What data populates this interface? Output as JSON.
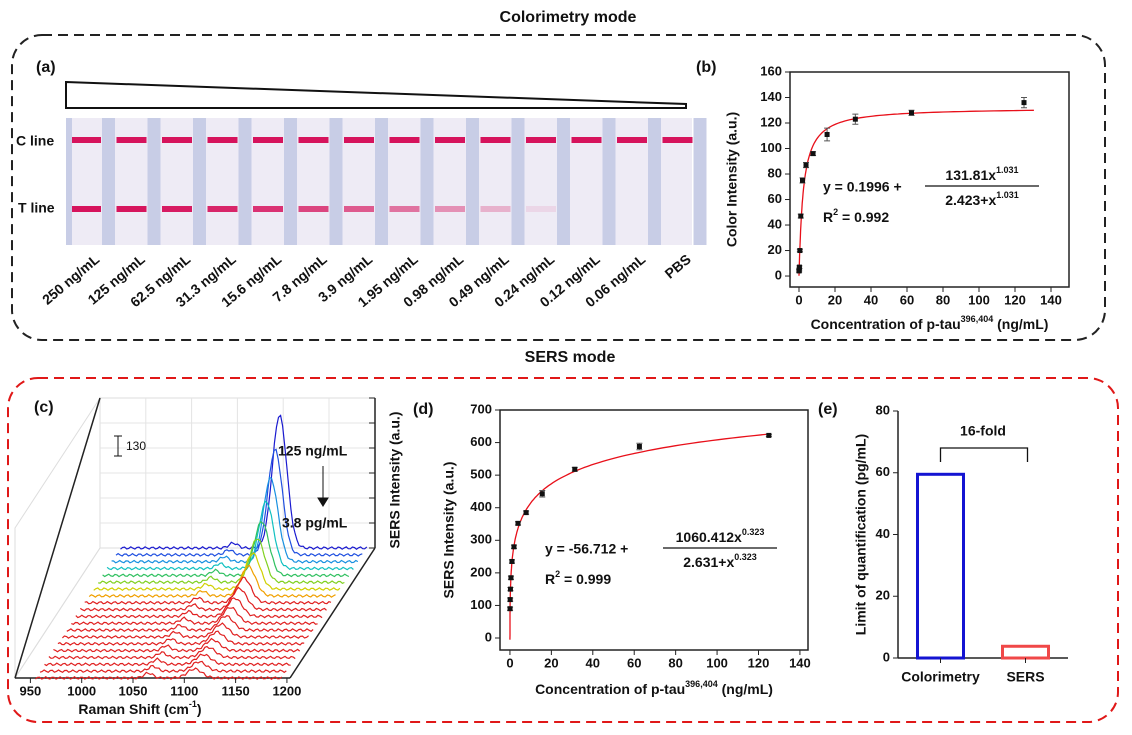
{
  "headings": {
    "top": "Colorimetry mode",
    "bottom": "SERS mode"
  },
  "panel_a": {
    "label": "(a)",
    "c_line": "C line",
    "t_line": "T line",
    "strips": [
      "250 ng/mL",
      "125 ng/mL",
      "62.5 ng/mL",
      "31.3 ng/mL",
      "15.6 ng/mL",
      "7.8 ng/mL",
      "3.9 ng/mL",
      "1.95 ng/mL",
      "0.98 ng/mL",
      "0.49 ng/mL",
      "0.24 ng/mL",
      "0.12 ng/mL",
      "0.06 ng/mL",
      "PBS"
    ]
  },
  "panel_c": {
    "label": "(c)",
    "x_label": [
      "Raman Shift (cm",
      "-1",
      ")"
    ],
    "y_label": "SERS Intensity (a.u.)",
    "scale_bar": "130",
    "high": "125 ng/mL",
    "low": "3.8 pg/mL",
    "xlim": [
      935,
      1203
    ],
    "xticks": [
      950,
      1000,
      1050,
      1100,
      1150,
      1200
    ]
  },
  "chart_data": [
    {
      "type": "scatter",
      "panel_label": "(b)",
      "x_label": [
        "Concentration of p-tau",
        "396,404",
        " (ng/mL)"
      ],
      "y_label": "Color Intensity (a.u.)",
      "x": [
        0.06,
        0.12,
        0.24,
        0.49,
        0.98,
        1.95,
        3.9,
        7.8,
        15.6,
        31.3,
        62.5,
        125
      ],
      "values": [
        4,
        5,
        7,
        20,
        47,
        75,
        87,
        96,
        111,
        123,
        128,
        136
      ],
      "errors": [
        1,
        1,
        1,
        1,
        1.5,
        2,
        2,
        1.5,
        5,
        4,
        2,
        4
      ],
      "color": "#111111",
      "fit_color": "#e8101a",
      "fit": {
        "a": 0.1996,
        "b": 131.81,
        "c": 2.423,
        "n": 1.031
      },
      "equation": {
        "lhs": "y = 0.1996 +",
        "numerator": [
          "131.81x",
          "1.031"
        ],
        "denominator": [
          "2.423+x",
          "1.031"
        ],
        "r2": [
          "R",
          "2",
          " = 0.992"
        ]
      },
      "xlim": [
        -5,
        150
      ],
      "ylim": [
        -8.6,
        160
      ],
      "xticks": [
        0,
        20,
        40,
        60,
        80,
        100,
        120,
        140
      ],
      "yticks": [
        0,
        20,
        40,
        60,
        80,
        100,
        120,
        140,
        160
      ]
    },
    {
      "type": "scatter",
      "panel_label": "(d)",
      "x_label": [
        "Concentration of p-tau",
        "396,404",
        " (ng/mL)"
      ],
      "y_label": "SERS Intensity (a.u.)",
      "x": [
        0.06,
        0.12,
        0.24,
        0.49,
        0.98,
        1.95,
        3.9,
        7.8,
        15.6,
        31.3,
        62.5,
        125
      ],
      "values": [
        90,
        118,
        150,
        185,
        235,
        280,
        352,
        385,
        443,
        518,
        588,
        622
      ],
      "errors": [
        5,
        5,
        5,
        5,
        5,
        5,
        5,
        5,
        10,
        6,
        10,
        3
      ],
      "color": "#111111",
      "fit_color": "#e8101a",
      "fit": {
        "a": -56.712,
        "b": 1060.412,
        "c": 2.631,
        "n": 0.323
      },
      "equation": {
        "lhs": "y = -56.712 +",
        "numerator": [
          "1060.412x",
          "0.323"
        ],
        "denominator": [
          "2.631+x",
          "0.323"
        ],
        "r2": [
          "R",
          "2",
          " = 0.999"
        ]
      },
      "xlim": [
        -4.8,
        143.9
      ],
      "ylim": [
        -36.8,
        700
      ],
      "xticks": [
        0,
        20,
        40,
        60,
        80,
        100,
        120,
        140
      ],
      "yticks": [
        0,
        100,
        200,
        300,
        400,
        500,
        600,
        700
      ]
    },
    {
      "type": "bar",
      "panel_label": "(e)",
      "categories": [
        "Colorimetry",
        "SERS"
      ],
      "values": [
        59.5,
        3.8
      ],
      "colors": [
        "#1414d2",
        "#f04848"
      ],
      "y_label": "Limit of quantification (pg/mL)",
      "annotation": "16-fold",
      "ylim": [
        0,
        80
      ],
      "yticks": [
        0,
        20,
        40,
        60,
        80
      ]
    }
  ]
}
